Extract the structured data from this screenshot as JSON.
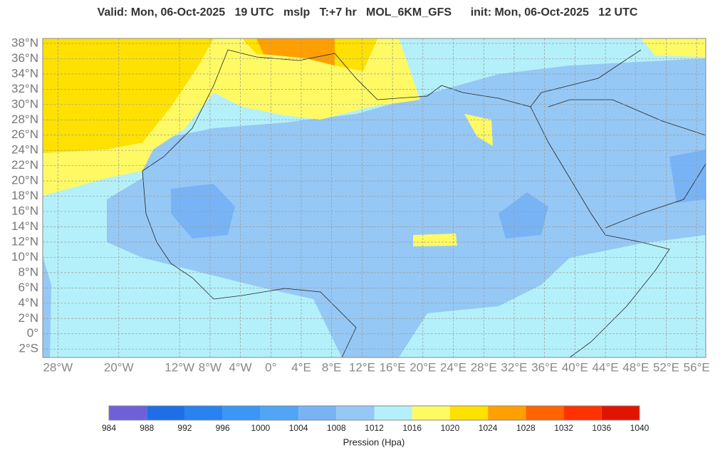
{
  "title": "Valid: Mon, 06-Oct-2025   19 UTC   mslp   T:+7 hr   MOL_6KM_GFS      init: Mon, 06-Oct-2025   12 UTC",
  "map": {
    "xlim": [
      -30,
      57.2
    ],
    "ylim": [
      -3.1,
      38.65
    ],
    "grid": true,
    "lat_ticks": [
      {
        "value": 38,
        "label": "38°N"
      },
      {
        "value": 36,
        "label": "36°N"
      },
      {
        "value": 34,
        "label": "34°N"
      },
      {
        "value": 32,
        "label": "32°N"
      },
      {
        "value": 30,
        "label": "30°N"
      },
      {
        "value": 28,
        "label": "28°N"
      },
      {
        "value": 26,
        "label": "26°N"
      },
      {
        "value": 24,
        "label": "24°N"
      },
      {
        "value": 22,
        "label": "22°N"
      },
      {
        "value": 20,
        "label": "20°N"
      },
      {
        "value": 18,
        "label": "18°N"
      },
      {
        "value": 16,
        "label": "16°N"
      },
      {
        "value": 14,
        "label": "14°N"
      },
      {
        "value": 12,
        "label": "12°N"
      },
      {
        "value": 10,
        "label": "10°N"
      },
      {
        "value": 8,
        "label": "8°N"
      },
      {
        "value": 6,
        "label": "6°N"
      },
      {
        "value": 4,
        "label": "4°N"
      },
      {
        "value": 2,
        "label": "2°N"
      },
      {
        "value": 0,
        "label": "0°"
      },
      {
        "value": -2,
        "label": "2°S"
      }
    ],
    "lon_ticks": [
      {
        "value": -28,
        "label": "28°W"
      },
      {
        "value": -20,
        "label": "20°W"
      },
      {
        "value": -12,
        "label": "12°W"
      },
      {
        "value": -8,
        "label": "8°W"
      },
      {
        "value": -4,
        "label": "4°W"
      },
      {
        "value": 0,
        "label": "0°"
      },
      {
        "value": 4,
        "label": "4°E"
      },
      {
        "value": 8,
        "label": "8°E"
      },
      {
        "value": 12,
        "label": "12°E"
      },
      {
        "value": 16,
        "label": "16°E"
      },
      {
        "value": 20,
        "label": "20°E"
      },
      {
        "value": 24,
        "label": "24°E"
      },
      {
        "value": 28,
        "label": "28°E"
      },
      {
        "value": 32,
        "label": "32°E"
      },
      {
        "value": 36,
        "label": "36°E"
      },
      {
        "value": 40,
        "label": "40°E"
      },
      {
        "value": 44,
        "label": "44°E"
      },
      {
        "value": 48,
        "label": "48°E"
      },
      {
        "value": 52,
        "label": "52°E"
      },
      {
        "value": 56,
        "label": "56°E"
      }
    ]
  },
  "colorbar": {
    "ticks": [
      984,
      988,
      992,
      996,
      1000,
      1004,
      1008,
      1012,
      1016,
      1020,
      1024,
      1028,
      1032,
      1036,
      1040
    ],
    "colors": [
      "#7060d8",
      "#1e6ee6",
      "#2882f0",
      "#3c96f5",
      "#50a5f5",
      "#78b4f5",
      "#96c8f5",
      "#b4f0fa",
      "#fffa64",
      "#ffe100",
      "#ffa000",
      "#ff6400",
      "#ff3200",
      "#e11400"
    ],
    "label": "Pression (Hpa)"
  }
}
